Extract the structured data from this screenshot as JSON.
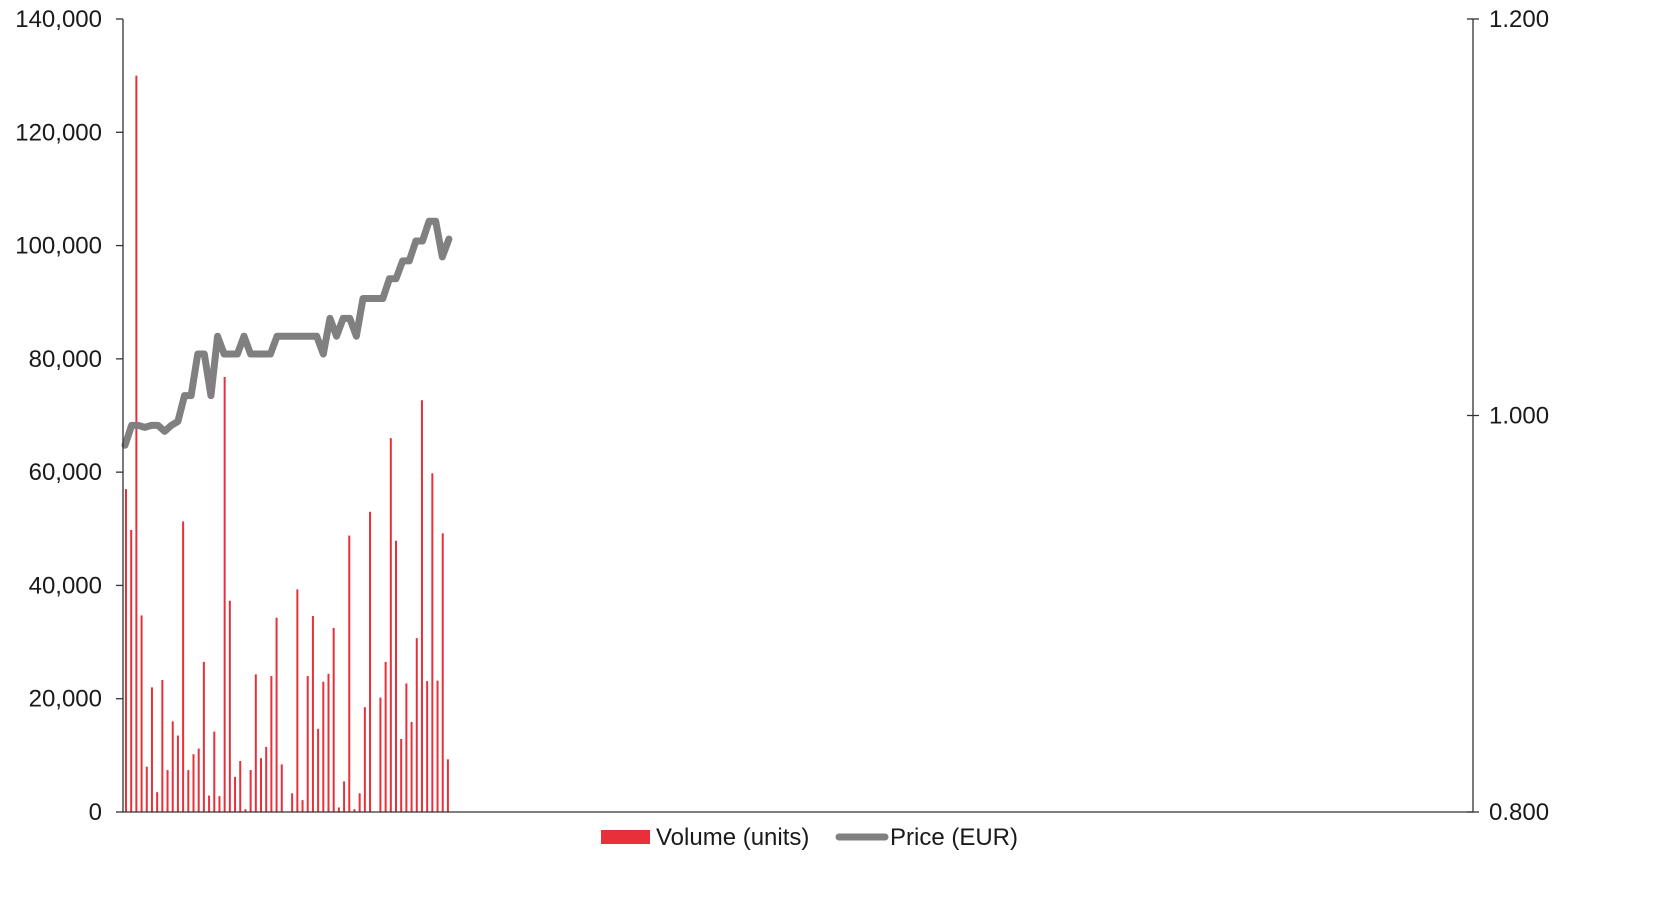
{
  "chart_data": {
    "type": "bar+line",
    "title": "",
    "xlabel": "",
    "grid": false,
    "legend_position": "bottom",
    "colors": {
      "volume": "#e8303a",
      "price": "#808080",
      "axis": "#333333"
    },
    "y_left": {
      "min": 0,
      "max": 140000,
      "ticks": [
        0,
        20000,
        40000,
        60000,
        80000,
        100000,
        120000,
        140000
      ],
      "tick_labels": [
        "0",
        "20,000",
        "40,000",
        "60,000",
        "80,000",
        "100,000",
        "120,000",
        "140,000"
      ]
    },
    "y_right": {
      "min": 0.8,
      "max": 1.2,
      "ticks": [
        0.8,
        1.0,
        1.2
      ],
      "tick_labels": [
        "0.800",
        "1.000",
        "1.200"
      ]
    },
    "x_slots": 260,
    "series": [
      {
        "name": "Volume (units)",
        "kind": "bar",
        "axis": "left",
        "values": [
          57000,
          49800,
          130000,
          34700,
          8000,
          22000,
          3500,
          23300,
          7400,
          16000,
          13500,
          51300,
          7400,
          10200,
          11200,
          26500,
          2900,
          14200,
          2800,
          76800,
          37300,
          6200,
          9000,
          500,
          7400,
          24300,
          9500,
          11500,
          24000,
          34300,
          8400,
          0,
          3300,
          39300,
          2100,
          24000,
          34600,
          14700,
          23000,
          24400,
          32500,
          800,
          5400,
          48800,
          500,
          3300,
          18500,
          53000,
          0,
          20200,
          26500,
          66000,
          47900,
          12900,
          22700,
          15900,
          30700,
          72700,
          23100,
          59800,
          23200,
          49200,
          9300
        ]
      },
      {
        "name": "Price (EUR)",
        "kind": "line",
        "axis": "right",
        "values": [
          0.985,
          0.995,
          0.995,
          0.994,
          0.995,
          0.995,
          0.992,
          0.995,
          0.997,
          1.01,
          1.01,
          1.031,
          1.031,
          1.01,
          1.04,
          1.031,
          1.031,
          1.031,
          1.04,
          1.031,
          1.031,
          1.031,
          1.031,
          1.04,
          1.04,
          1.04,
          1.04,
          1.04,
          1.04,
          1.04,
          1.031,
          1.049,
          1.04,
          1.049,
          1.049,
          1.04,
          1.059,
          1.059,
          1.059,
          1.059,
          1.069,
          1.069,
          1.078,
          1.078,
          1.088,
          1.088,
          1.098,
          1.098,
          1.08,
          1.089
        ]
      }
    ]
  },
  "legend": {
    "items": [
      {
        "label": "Volume (units)",
        "color": "#e8303a",
        "kind": "bar"
      },
      {
        "label": "Price (EUR)",
        "color": "#808080",
        "kind": "line"
      }
    ]
  }
}
